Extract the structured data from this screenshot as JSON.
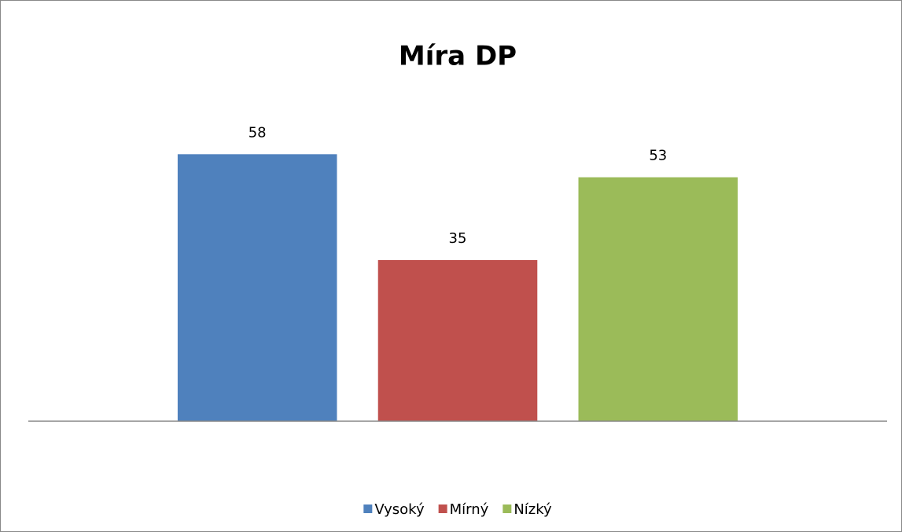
{
  "chart_data": {
    "type": "bar",
    "title": "Míra DP",
    "categories": [
      null
    ],
    "series": [
      {
        "name": "Vysoký",
        "color": "#4f81bd",
        "values": [
          58
        ]
      },
      {
        "name": "Mírný",
        "color": "#c0504d",
        "values": [
          35
        ]
      },
      {
        "name": "Nízký",
        "color": "#9bbb59",
        "values": [
          53
        ]
      }
    ],
    "ylim": [
      0,
      70
    ],
    "grid": false,
    "legend": "bottom"
  }
}
